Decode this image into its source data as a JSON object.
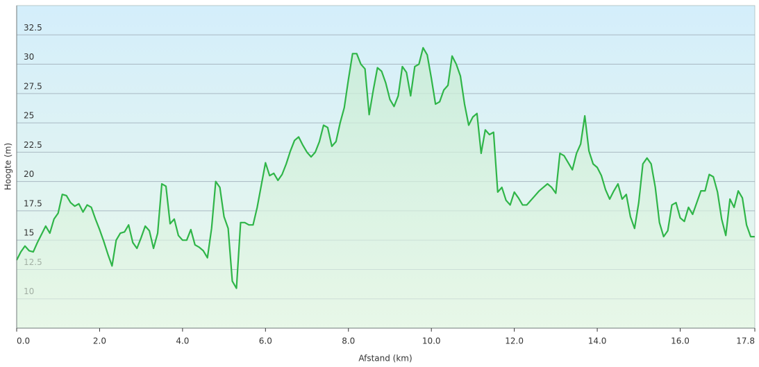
{
  "chart_data": {
    "type": "area",
    "xlabel": "Afstand  (km)",
    "ylabel": "Hoogte (m)",
    "x": [
      0.0,
      0.1,
      0.2,
      0.3,
      0.4,
      0.5,
      0.6,
      0.7,
      0.8,
      0.9,
      1.0,
      1.1,
      1.2,
      1.3,
      1.4,
      1.5,
      1.6,
      1.7,
      1.8,
      1.9,
      2.0,
      2.1,
      2.2,
      2.3,
      2.4,
      2.5,
      2.6,
      2.7,
      2.8,
      2.9,
      3.0,
      3.1,
      3.2,
      3.3,
      3.4,
      3.5,
      3.6,
      3.7,
      3.8,
      3.9,
      4.0,
      4.1,
      4.2,
      4.3,
      4.4,
      4.5,
      4.6,
      4.7,
      4.8,
      4.9,
      5.0,
      5.1,
      5.2,
      5.3,
      5.4,
      5.5,
      5.6,
      5.7,
      5.8,
      5.9,
      6.0,
      6.1,
      6.2,
      6.3,
      6.4,
      6.5,
      6.6,
      6.7,
      6.8,
      6.9,
      7.0,
      7.1,
      7.2,
      7.3,
      7.4,
      7.5,
      7.6,
      7.7,
      7.8,
      7.9,
      8.0,
      8.1,
      8.2,
      8.3,
      8.4,
      8.5,
      8.6,
      8.7,
      8.8,
      8.9,
      9.0,
      9.1,
      9.2,
      9.3,
      9.4,
      9.5,
      9.6,
      9.7,
      9.8,
      9.9,
      10.0,
      10.1,
      10.2,
      10.3,
      10.4,
      10.5,
      10.6,
      10.7,
      10.8,
      10.9,
      11.0,
      11.1,
      11.2,
      11.3,
      11.4,
      11.5,
      11.6,
      11.7,
      11.8,
      11.9,
      12.0,
      12.1,
      12.2,
      12.3,
      12.4,
      12.5,
      12.6,
      12.7,
      12.8,
      12.9,
      13.0,
      13.1,
      13.2,
      13.3,
      13.4,
      13.5,
      13.6,
      13.7,
      13.8,
      13.9,
      14.0,
      14.1,
      14.2,
      14.3,
      14.4,
      14.5,
      14.6,
      14.7,
      14.8,
      14.9,
      15.0,
      15.1,
      15.2,
      15.3,
      15.4,
      15.5,
      15.6,
      15.7,
      15.8,
      15.9,
      16.0,
      16.1,
      16.2,
      16.3,
      16.4,
      16.5,
      16.6,
      16.7,
      16.8,
      16.9,
      17.0,
      17.1,
      17.2,
      17.3,
      17.4,
      17.5,
      17.6,
      17.7,
      17.8
    ],
    "values": [
      13.3,
      14.0,
      14.5,
      14.1,
      14.0,
      14.8,
      15.5,
      16.2,
      15.6,
      16.8,
      17.3,
      18.9,
      18.8,
      18.2,
      17.9,
      18.1,
      17.4,
      18.0,
      17.8,
      16.8,
      15.9,
      14.9,
      13.8,
      12.8,
      15.0,
      15.6,
      15.7,
      16.3,
      14.8,
      14.3,
      15.2,
      16.2,
      15.8,
      14.3,
      15.6,
      19.8,
      19.6,
      16.4,
      16.8,
      15.4,
      15.0,
      15.0,
      15.9,
      14.6,
      14.4,
      14.1,
      13.5,
      16.0,
      20.0,
      19.5,
      17.0,
      16.0,
      11.5,
      10.9,
      16.5,
      16.5,
      16.3,
      16.3,
      17.8,
      19.7,
      21.6,
      20.5,
      20.7,
      20.1,
      20.6,
      21.5,
      22.6,
      23.5,
      23.8,
      23.1,
      22.5,
      22.1,
      22.5,
      23.4,
      24.8,
      24.6,
      23.0,
      23.4,
      25.0,
      26.3,
      28.7,
      30.9,
      30.9,
      30.0,
      29.6,
      25.7,
      27.8,
      29.7,
      29.4,
      28.4,
      27.0,
      26.4,
      27.3,
      29.8,
      29.3,
      27.3,
      29.8,
      30.0,
      31.4,
      30.8,
      28.8,
      26.6,
      26.8,
      27.8,
      28.2,
      30.7,
      30.0,
      29.0,
      26.6,
      24.8,
      25.5,
      25.8,
      22.4,
      24.4,
      24.0,
      24.2,
      19.1,
      19.5,
      18.4,
      18.0,
      19.1,
      18.6,
      18.0,
      18.0,
      18.4,
      18.8,
      19.2,
      19.5,
      19.8,
      19.5,
      19.0,
      22.4,
      22.2,
      21.6,
      21.0,
      22.4,
      23.2,
      25.6,
      22.6,
      21.5,
      21.2,
      20.5,
      19.3,
      18.5,
      19.2,
      19.8,
      18.5,
      18.9,
      17.0,
      16.0,
      18.2,
      21.5,
      22.0,
      21.5,
      19.5,
      16.5,
      15.3,
      15.8,
      18.0,
      18.2,
      16.9,
      16.6,
      17.8,
      17.2,
      18.2,
      19.2,
      19.2,
      20.6,
      20.4,
      19.1,
      16.8,
      15.4,
      18.5,
      17.8,
      19.2,
      18.6,
      16.3,
      15.3,
      15.3
    ],
    "color": "#2fb548",
    "xlim": [
      0,
      17.8
    ],
    "ylim": [
      7.5,
      35
    ],
    "xticks": [
      {
        "value": 0,
        "label": "0.0"
      },
      {
        "value": 2,
        "label": "2.0"
      },
      {
        "value": 4,
        "label": "4.0"
      },
      {
        "value": 6,
        "label": "6.0"
      },
      {
        "value": 8,
        "label": "8.0"
      },
      {
        "value": 10,
        "label": "10.0"
      },
      {
        "value": 12,
        "label": "12.0"
      },
      {
        "value": 14,
        "label": "14.0"
      },
      {
        "value": 16,
        "label": "16.0"
      },
      {
        "value": 17.8,
        "label": "17.8"
      }
    ],
    "yticks": [
      10,
      12.5,
      15,
      17.5,
      20,
      22.5,
      25,
      27.5,
      30,
      32.5
    ],
    "grid": true
  }
}
